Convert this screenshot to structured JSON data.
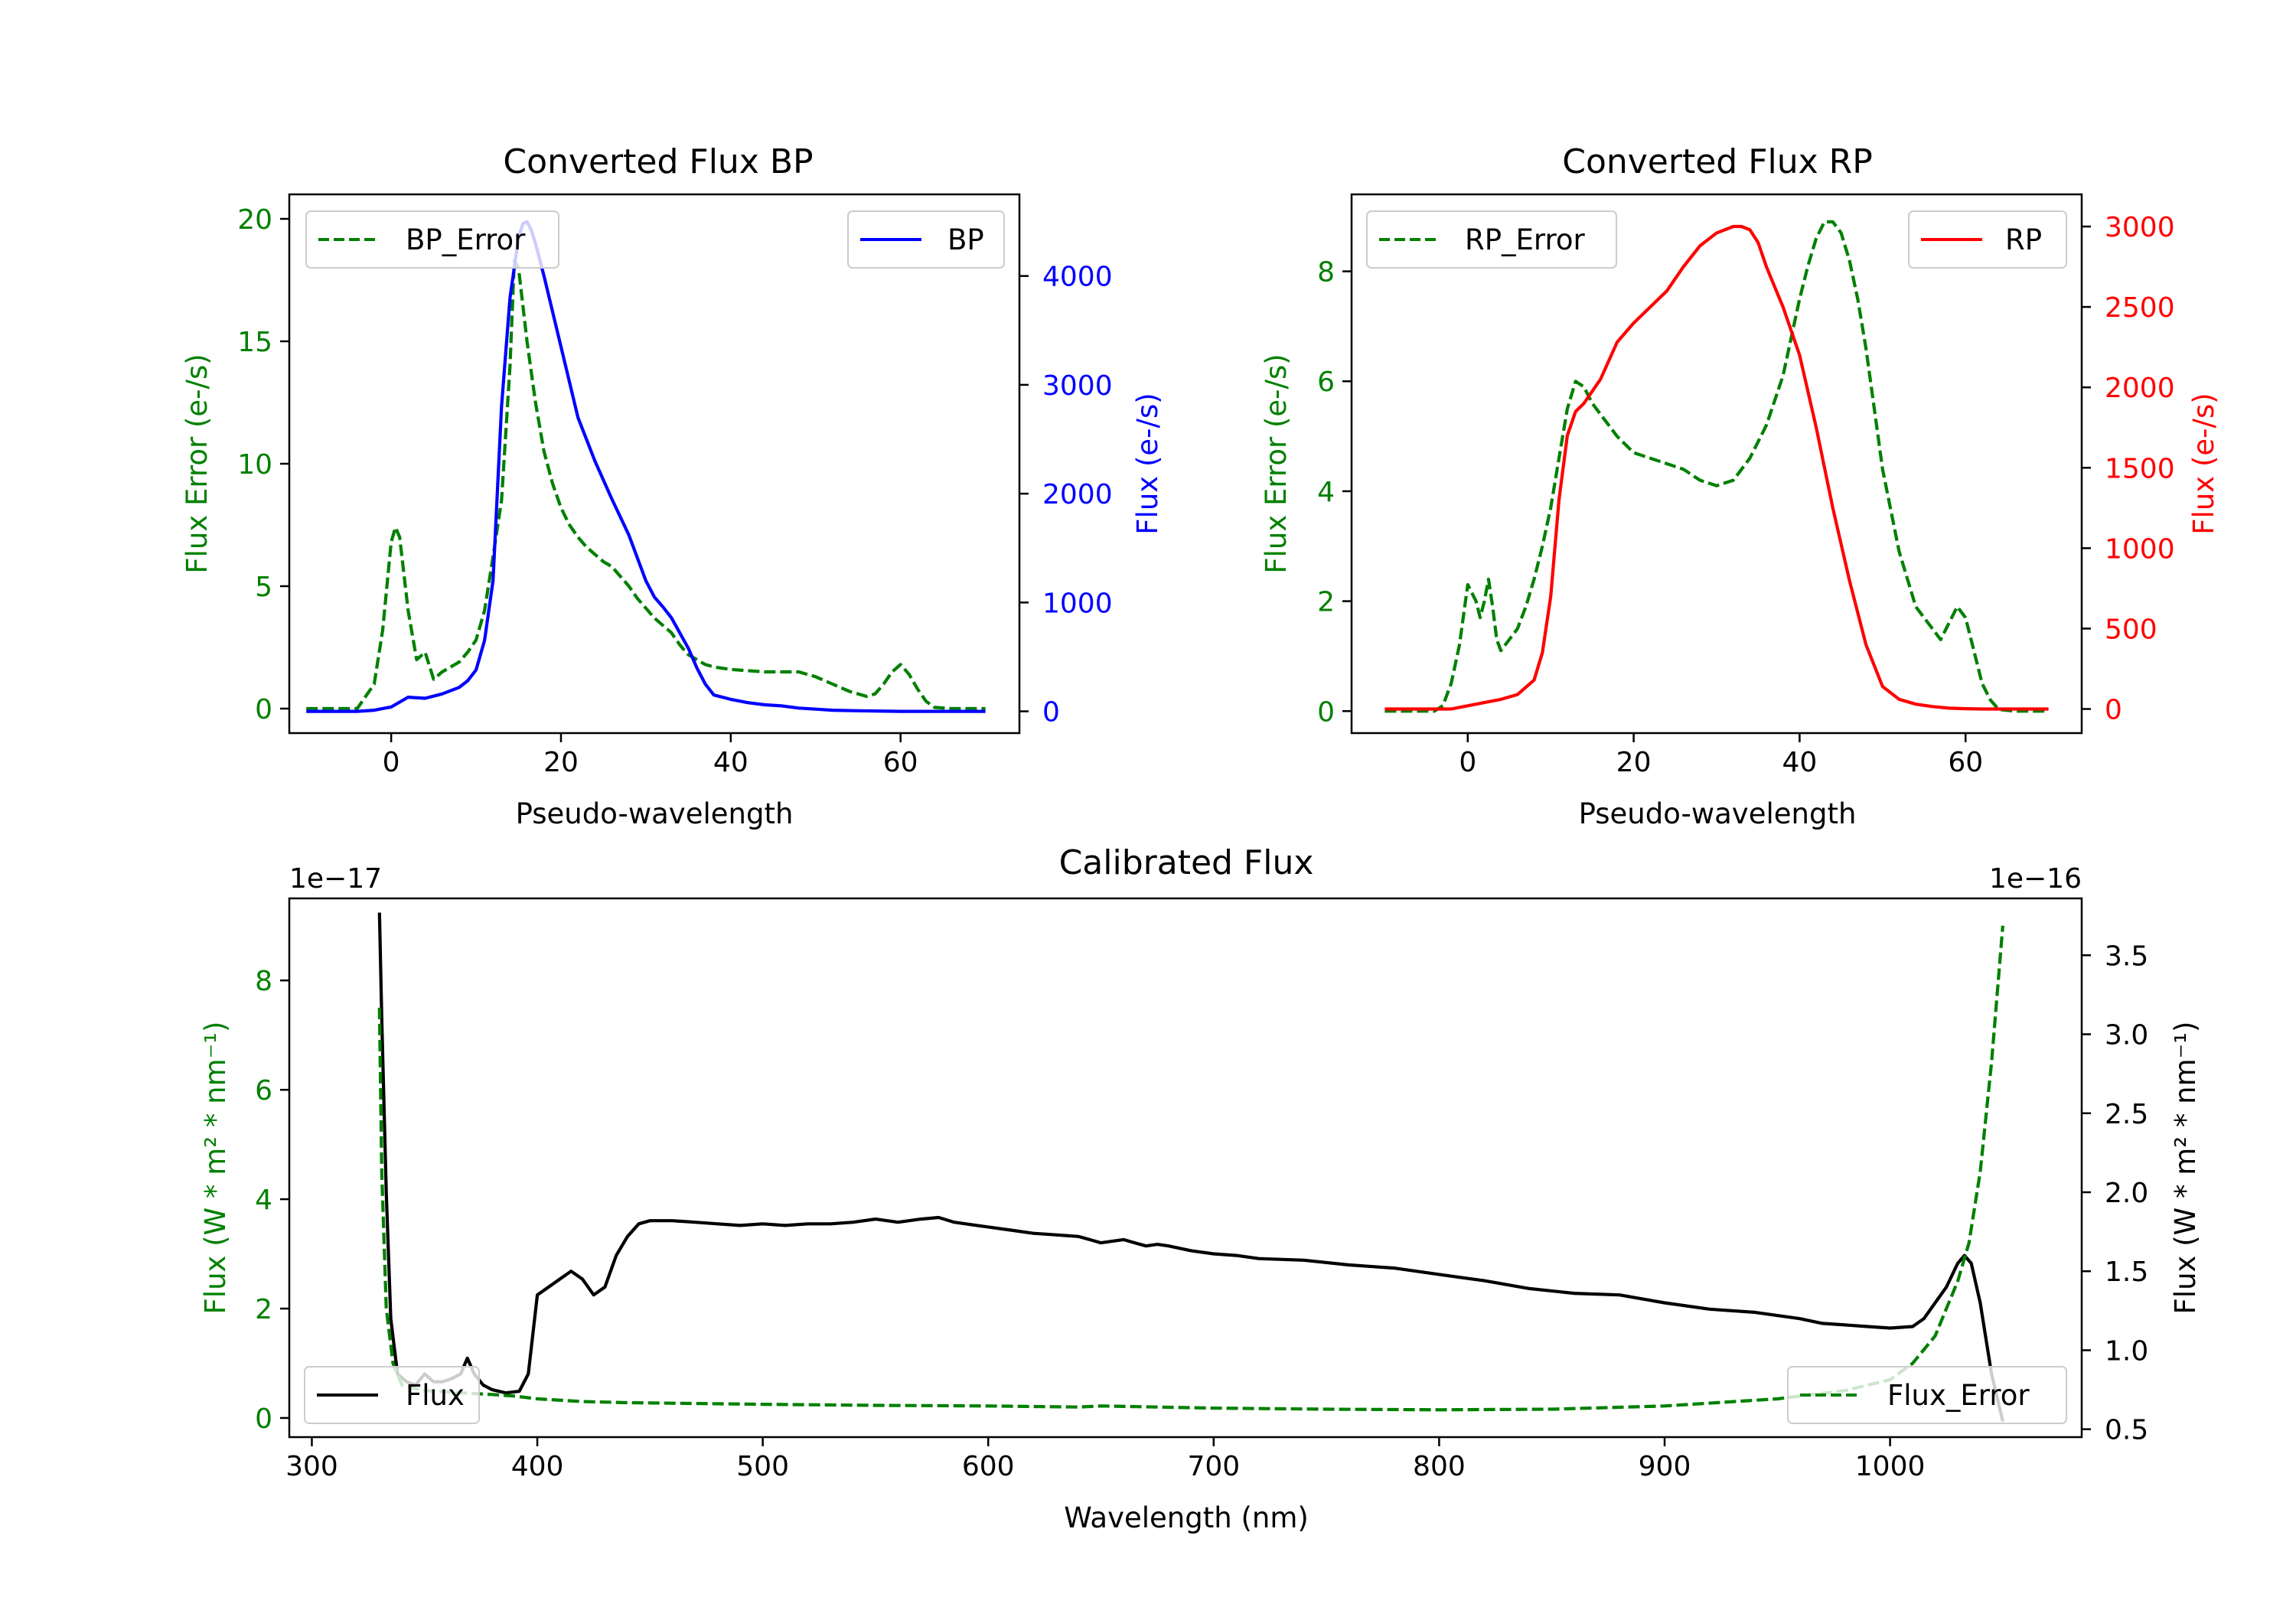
{
  "chart_data": [
    {
      "type": "line",
      "title": "Converted Flux BP",
      "xlabel": "Pseudo-wavelength",
      "ylabel_left": "Flux Error (e-/s)",
      "ylabel_right": "Flux (e-/s)",
      "xlim": [
        -12,
        74
      ],
      "ylim_left": [
        -1.0,
        21.0
      ],
      "ylim_right": [
        -200,
        4750
      ],
      "xticks": [
        0,
        20,
        40,
        60
      ],
      "yticks_left": [
        0,
        5,
        10,
        15,
        20
      ],
      "yticks_right": [
        0,
        1000,
        2000,
        3000,
        4000
      ],
      "grid": false,
      "legend": [
        "BP_Error",
        "BP"
      ],
      "legend_locations": [
        "top-left",
        "top-right"
      ],
      "series": [
        {
          "name": "BP_Error",
          "axis": "left",
          "style": "dashed",
          "color": "#008000",
          "x": [
            -10,
            -4,
            -2,
            -1,
            0,
            0.5,
            1,
            2,
            3,
            4,
            5,
            6,
            7,
            8,
            9,
            10,
            11,
            12,
            13,
            14,
            14.5,
            15,
            16,
            17,
            18,
            19,
            20,
            21,
            22,
            23,
            24,
            25,
            26,
            27,
            28,
            29,
            30,
            31,
            32,
            33,
            34,
            35,
            36,
            37,
            38,
            40,
            42,
            44,
            46,
            48,
            50,
            52,
            54,
            56,
            57,
            58,
            59,
            60,
            61,
            62,
            63,
            64,
            66,
            68,
            70
          ],
          "y": [
            0,
            0,
            1.0,
            3.2,
            6.8,
            7.4,
            7.0,
            4.0,
            2.0,
            2.3,
            1.2,
            1.5,
            1.7,
            1.9,
            2.3,
            2.8,
            4.0,
            6.2,
            8.5,
            14.0,
            18.3,
            18.0,
            15.0,
            12.5,
            10.5,
            9.2,
            8.2,
            7.5,
            7.0,
            6.6,
            6.3,
            6.0,
            5.8,
            5.4,
            5.0,
            4.5,
            4.1,
            3.7,
            3.4,
            3.1,
            2.6,
            2.2,
            2.0,
            1.8,
            1.7,
            1.6,
            1.55,
            1.5,
            1.5,
            1.5,
            1.3,
            1.0,
            0.7,
            0.5,
            0.6,
            1.0,
            1.5,
            1.8,
            1.4,
            0.8,
            0.3,
            0.05,
            0,
            0,
            0
          ]
        },
        {
          "name": "BP",
          "axis": "right",
          "style": "solid",
          "color": "#0000ff",
          "x": [
            -10,
            -4,
            -2,
            0,
            2,
            4,
            6,
            8,
            9,
            10,
            11,
            12,
            13,
            14,
            15,
            15.5,
            16,
            16.5,
            17,
            18,
            20,
            22,
            24,
            26,
            28,
            30,
            31,
            32,
            33,
            34,
            35,
            36,
            37,
            38,
            40,
            42,
            44,
            46,
            48,
            50,
            52,
            55,
            60,
            63,
            65,
            68,
            70
          ],
          "y": [
            0,
            0,
            10,
            40,
            130,
            120,
            160,
            220,
            280,
            380,
            650,
            1200,
            2800,
            3800,
            4350,
            4480,
            4500,
            4420,
            4300,
            4000,
            3350,
            2700,
            2300,
            1950,
            1620,
            1200,
            1050,
            960,
            860,
            720,
            580,
            400,
            250,
            150,
            110,
            80,
            60,
            50,
            30,
            20,
            10,
            5,
            0,
            0,
            0,
            0,
            0
          ]
        }
      ]
    },
    {
      "type": "line",
      "title": "Converted Flux RP",
      "xlabel": "Pseudo-wavelength",
      "ylabel_left": "Flux Error (e-/s)",
      "ylabel_right": "Flux (e-/s)",
      "xlim": [
        -14,
        74
      ],
      "ylim_left": [
        -0.4,
        9.4
      ],
      "ylim_right": [
        -150,
        3200
      ],
      "xticks": [
        0,
        20,
        40,
        60
      ],
      "yticks_left": [
        0,
        2,
        4,
        6,
        8
      ],
      "yticks_right": [
        0,
        500,
        1000,
        1500,
        2000,
        2500,
        3000
      ],
      "grid": false,
      "legend": [
        "RP_Error",
        "RP"
      ],
      "legend_locations": [
        "top-left",
        "top-right"
      ],
      "series": [
        {
          "name": "RP_Error",
          "axis": "left",
          "style": "dashed",
          "color": "#008000",
          "x": [
            -10,
            -4,
            -3,
            -2,
            -1,
            0,
            1,
            1.5,
            2,
            2.5,
            3,
            3.5,
            4,
            5,
            6,
            7,
            8,
            9,
            10,
            11,
            12,
            13,
            14,
            15,
            16,
            18,
            20,
            22,
            24,
            26,
            28,
            30,
            32,
            34,
            36,
            38,
            40,
            41,
            42,
            43,
            44,
            45,
            46,
            47,
            48,
            49,
            50,
            52,
            54,
            56,
            57,
            58,
            59,
            60,
            61,
            62,
            63,
            64,
            66,
            70
          ],
          "y": [
            0,
            0,
            0.1,
            0.5,
            1.2,
            2.3,
            2.0,
            1.7,
            2.0,
            2.4,
            1.9,
            1.3,
            1.1,
            1.3,
            1.5,
            1.9,
            2.4,
            3.0,
            3.7,
            4.6,
            5.5,
            6.0,
            5.9,
            5.6,
            5.4,
            5.0,
            4.7,
            4.6,
            4.5,
            4.4,
            4.2,
            4.1,
            4.2,
            4.6,
            5.2,
            6.1,
            7.5,
            8.1,
            8.6,
            8.9,
            8.9,
            8.7,
            8.2,
            7.5,
            6.6,
            5.5,
            4.4,
            2.9,
            1.9,
            1.5,
            1.3,
            1.6,
            1.9,
            1.7,
            1.1,
            0.5,
            0.2,
            0.03,
            0,
            0
          ]
        },
        {
          "name": "RP",
          "axis": "right",
          "style": "solid",
          "color": "#ff0000",
          "x": [
            -10,
            -4,
            -2,
            0,
            2,
            4,
            6,
            8,
            9,
            10,
            11,
            12,
            13,
            14,
            16,
            18,
            20,
            22,
            24,
            26,
            28,
            30,
            32,
            33,
            34,
            35,
            36,
            38,
            40,
            42,
            44,
            46,
            48,
            50,
            52,
            54,
            56,
            58,
            60,
            62,
            65,
            70
          ],
          "y": [
            0,
            0,
            0,
            20,
            40,
            60,
            90,
            180,
            350,
            700,
            1300,
            1700,
            1850,
            1900,
            2050,
            2280,
            2400,
            2500,
            2600,
            2750,
            2880,
            2960,
            3000,
            3000,
            2980,
            2900,
            2750,
            2500,
            2200,
            1750,
            1250,
            800,
            400,
            140,
            60,
            30,
            15,
            5,
            2,
            0,
            0,
            0
          ]
        }
      ]
    },
    {
      "type": "line",
      "title": "Calibrated Flux",
      "xlabel": "Wavelength (nm)",
      "ylabel_left": "Flux (W * m² * nm⁻¹)",
      "ylabel_right": "Flux (W * m² * nm⁻¹)",
      "offset_left": "1e−17",
      "offset_right": "1e−16",
      "xlim": [
        290,
        1085
      ],
      "ylim_left": [
        -0.35,
        9.5
      ],
      "ylim_right": [
        0.45,
        3.86
      ],
      "xticks": [
        300,
        400,
        500,
        600,
        700,
        800,
        900,
        1000
      ],
      "yticks_left": [
        0,
        2,
        4,
        6,
        8
      ],
      "yticks_right": [
        0.5,
        1.0,
        1.5,
        2.0,
        2.5,
        3.0,
        3.5
      ],
      "grid": false,
      "legend": [
        "Flux",
        "Flux_Error"
      ],
      "legend_locations": [
        "bottom-left",
        "bottom-right"
      ],
      "series": [
        {
          "name": "Flux",
          "axis": "right",
          "style": "solid",
          "color": "#000000",
          "x": [
            330,
            331,
            333,
            335,
            338,
            342,
            346,
            350,
            354,
            358,
            362,
            366,
            369,
            372,
            376,
            380,
            386,
            392,
            396,
            400,
            405,
            410,
            415,
            420,
            425,
            430,
            435,
            440,
            445,
            450,
            460,
            470,
            480,
            490,
            500,
            510,
            520,
            530,
            540,
            550,
            560,
            570,
            578,
            585,
            590,
            600,
            610,
            620,
            630,
            640,
            645,
            650,
            660,
            665,
            670,
            675,
            680,
            690,
            700,
            710,
            720,
            740,
            760,
            780,
            800,
            820,
            840,
            860,
            880,
            900,
            920,
            940,
            960,
            970,
            980,
            990,
            1000,
            1010,
            1015,
            1020,
            1025,
            1030,
            1033,
            1036,
            1040,
            1045,
            1050
          ],
          "y": [
            3.77,
            3.1,
            2.0,
            1.2,
            0.85,
            0.8,
            0.78,
            0.85,
            0.8,
            0.8,
            0.82,
            0.85,
            0.95,
            0.85,
            0.78,
            0.75,
            0.73,
            0.74,
            0.85,
            1.35,
            1.4,
            1.45,
            1.5,
            1.45,
            1.35,
            1.4,
            1.6,
            1.72,
            1.8,
            1.82,
            1.82,
            1.81,
            1.8,
            1.79,
            1.8,
            1.79,
            1.8,
            1.8,
            1.81,
            1.83,
            1.81,
            1.83,
            1.84,
            1.81,
            1.8,
            1.78,
            1.76,
            1.74,
            1.73,
            1.72,
            1.7,
            1.68,
            1.7,
            1.68,
            1.66,
            1.67,
            1.66,
            1.63,
            1.61,
            1.6,
            1.58,
            1.57,
            1.54,
            1.52,
            1.48,
            1.44,
            1.39,
            1.36,
            1.35,
            1.3,
            1.26,
            1.24,
            1.2,
            1.17,
            1.16,
            1.15,
            1.14,
            1.15,
            1.2,
            1.3,
            1.4,
            1.55,
            1.6,
            1.55,
            1.3,
            0.85,
            0.55
          ]
        },
        {
          "name": "Flux_Error",
          "axis": "left",
          "style": "dashed",
          "color": "#008000",
          "x": [
            330,
            331,
            333,
            336,
            340,
            350,
            360,
            370,
            380,
            390,
            400,
            420,
            440,
            460,
            500,
            550,
            600,
            640,
            645,
            650,
            700,
            750,
            800,
            850,
            900,
            950,
            980,
            1000,
            1010,
            1020,
            1025,
            1030,
            1035,
            1040,
            1045,
            1050
          ],
          "y": [
            7.5,
            4.5,
            2.0,
            1.0,
            0.6,
            0.5,
            0.48,
            0.45,
            0.43,
            0.4,
            0.35,
            0.3,
            0.28,
            0.27,
            0.25,
            0.23,
            0.22,
            0.2,
            0.21,
            0.22,
            0.18,
            0.16,
            0.15,
            0.16,
            0.22,
            0.35,
            0.5,
            0.7,
            1.0,
            1.5,
            2.0,
            2.5,
            3.2,
            4.5,
            6.5,
            9.0
          ]
        }
      ]
    }
  ]
}
